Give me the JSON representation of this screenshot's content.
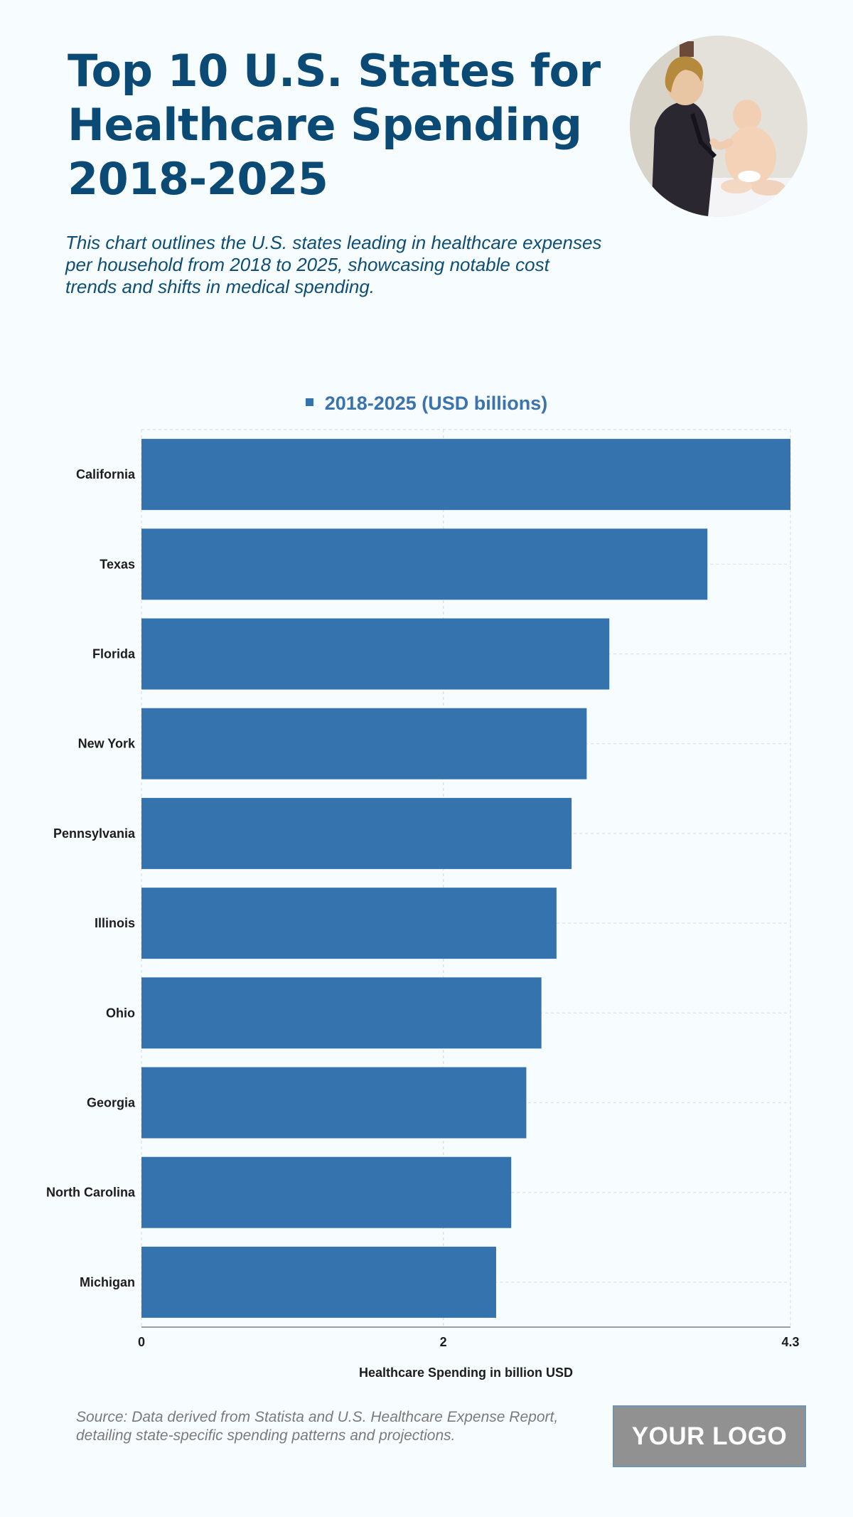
{
  "header": {
    "title": "Top 10 U.S. States for Healthcare Spending 2018-2025",
    "subtitle": "This chart outlines the U.S. states leading in healthcare expenses per household from 2018 to 2025, showcasing notable cost trends and shifts in medical spending.",
    "photo_icon": "caregiver-with-baby-photo"
  },
  "chart_data": {
    "type": "bar",
    "orientation": "horizontal",
    "categories": [
      "California",
      "Texas",
      "Florida",
      "New York",
      "Pennsylvania",
      "Illinois",
      "Ohio",
      "Georgia",
      "North Carolina",
      "Michigan"
    ],
    "series": [
      {
        "name": "2018-2025 (USD billions)",
        "values": [
          4.3,
          3.75,
          3.1,
          2.95,
          2.85,
          2.75,
          2.65,
          2.55,
          2.45,
          2.35
        ]
      }
    ],
    "xlabel": "Healthcare Spending in billion USD",
    "ylabel": "",
    "xlim": [
      0,
      4.3
    ],
    "xticks": [
      "0",
      "2",
      "4.3"
    ],
    "grid": true,
    "legend_position": "top-center",
    "bar_color": "#3573ae"
  },
  "footer": {
    "source": "Source: Data derived from Statista and U.S. Healthcare Expense Report, detailing state-specific spending patterns and projections.",
    "logo_text": "YOUR LOGO"
  }
}
